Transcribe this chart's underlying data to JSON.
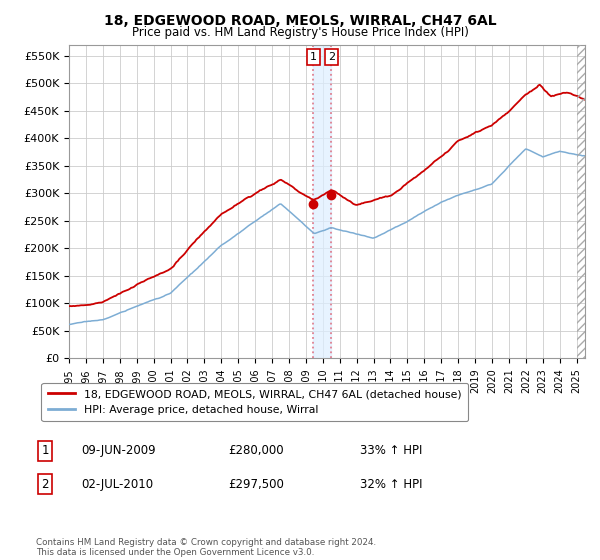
{
  "title": "18, EDGEWOOD ROAD, MEOLS, WIRRAL, CH47 6AL",
  "subtitle": "Price paid vs. HM Land Registry's House Price Index (HPI)",
  "ylabel_ticks": [
    "£0",
    "£50K",
    "£100K",
    "£150K",
    "£200K",
    "£250K",
    "£300K",
    "£350K",
    "£400K",
    "£450K",
    "£500K",
    "£550K"
  ],
  "ytick_values": [
    0,
    50000,
    100000,
    150000,
    200000,
    250000,
    300000,
    350000,
    400000,
    450000,
    500000,
    550000
  ],
  "ylim": [
    0,
    570000
  ],
  "xlim_start": 1995.0,
  "xlim_end": 2025.5,
  "property_color": "#cc0000",
  "hpi_color": "#7dadd4",
  "vline_color": "#e08090",
  "vband_color": "#ddeeff",
  "legend_property": "18, EDGEWOOD ROAD, MEOLS, WIRRAL, CH47 6AL (detached house)",
  "legend_hpi": "HPI: Average price, detached house, Wirral",
  "transaction1_label": "1",
  "transaction1_date": "09-JUN-2009",
  "transaction1_price": "£280,000",
  "transaction1_hpi": "33% ↑ HPI",
  "transaction2_label": "2",
  "transaction2_date": "02-JUL-2010",
  "transaction2_price": "£297,500",
  "transaction2_hpi": "32% ↑ HPI",
  "footer": "Contains HM Land Registry data © Crown copyright and database right 2024.\nThis data is licensed under the Open Government Licence v3.0.",
  "transaction1_x": 2009.44,
  "transaction1_y": 280000,
  "transaction2_x": 2010.5,
  "transaction2_y": 297500
}
